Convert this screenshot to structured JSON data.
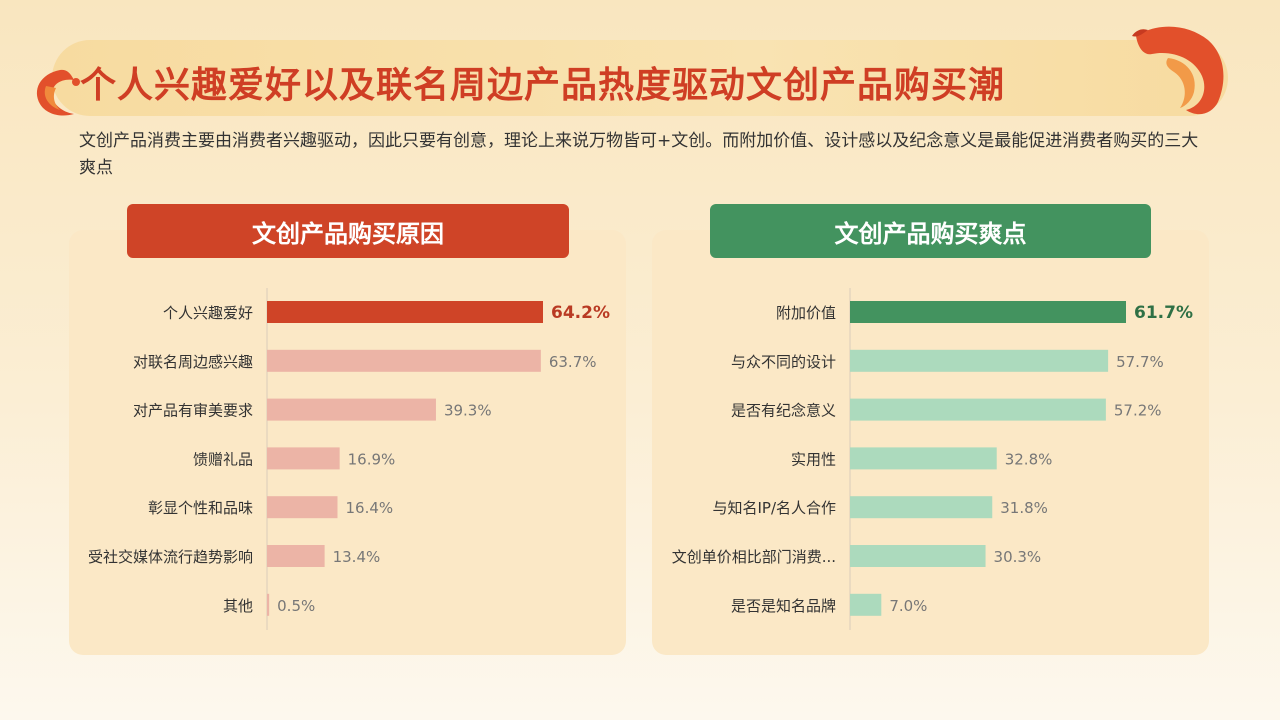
{
  "title": "个人兴趣爱好以及联名周边产品热度驱动文创产品购买潮",
  "subtitle": "文创产品消费主要由消费者兴趣驱动，因此只要有创意，理论上来说万物皆可+文创。而附加价值、设计感以及纪念意义是最能促进消费者购买的三大爽点",
  "colors": {
    "title_red": "#cf3e24",
    "left_header": "#cf4427",
    "left_top_bar": "#cf4427",
    "left_bar": "#ecb4a6",
    "left_top_label": "#b93a23",
    "right_header": "#43935f",
    "right_top_bar": "#43935f",
    "right_bar": "#acdabd",
    "right_top_label": "#2f7045"
  },
  "chart_data": [
    {
      "type": "bar",
      "orientation": "horizontal",
      "title": "文创产品购买原因",
      "categories": [
        "个人兴趣爱好",
        "对联名周边感兴趣",
        "对产品有审美要求",
        "馈赠礼品",
        "彰显个性和品味",
        "受社交媒体流行趋势影响",
        "其他"
      ],
      "values": [
        64.2,
        63.7,
        39.3,
        16.9,
        16.4,
        13.4,
        0.5
      ],
      "value_labels": [
        "64.2%",
        "63.7%",
        "39.3%",
        "16.9%",
        "16.4%",
        "13.4%",
        "0.5%"
      ],
      "unit": "%",
      "xlim": [
        0,
        64.2
      ],
      "highlight_index": 0
    },
    {
      "type": "bar",
      "orientation": "horizontal",
      "title": "文创产品购买爽点",
      "categories": [
        "附加价值",
        "与众不同的设计",
        "是否有纪念意义",
        "实用性",
        "与知名IP/名人合作",
        "文创单价相比部门消费...",
        "是否是知名品牌"
      ],
      "values": [
        61.7,
        57.7,
        57.2,
        32.8,
        31.8,
        30.3,
        7.0
      ],
      "value_labels": [
        "61.7%",
        "57.7%",
        "57.2%",
        "32.8%",
        "31.8%",
        "30.3%",
        "7.0%"
      ],
      "unit": "%",
      "xlim": [
        0,
        61.7
      ],
      "highlight_index": 0
    }
  ]
}
